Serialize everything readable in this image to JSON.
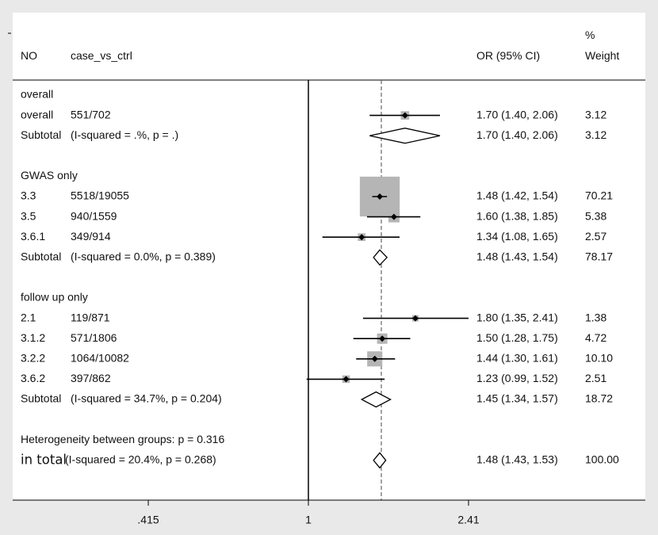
{
  "header": {
    "col_no": "NO",
    "col_label": "case_vs_ctrl",
    "col_or": "OR (95% CI)",
    "col_weight_line1": "%",
    "col_weight_line2": "Weight"
  },
  "chart_data": {
    "type": "forest",
    "x_scale": "log",
    "null_line": 1,
    "pooled_estimate": 1.48,
    "x_ticks": [
      {
        "value": 0.415,
        "label": ".415"
      },
      {
        "value": 1,
        "label": "1"
      },
      {
        "value": 2.41,
        "label": "2.41"
      }
    ],
    "rows": [
      {
        "kind": "group",
        "text": "overall"
      },
      {
        "kind": "study",
        "no": "overall",
        "label": "551/702",
        "or": 1.7,
        "lo": 1.4,
        "hi": 2.06,
        "ci_text": "1.70 (1.40, 2.06)",
        "weight": "3.12"
      },
      {
        "kind": "subtotal",
        "no": "Subtotal",
        "label": "(I-squared = .%, p = .)",
        "or": 1.7,
        "lo": 1.4,
        "hi": 2.06,
        "ci_text": "1.70 (1.40, 2.06)",
        "weight": "3.12"
      },
      {
        "kind": "blank"
      },
      {
        "kind": "group",
        "text": "GWAS only"
      },
      {
        "kind": "study",
        "no": "3.3",
        "label": "5518/19055",
        "or": 1.48,
        "lo": 1.42,
        "hi": 1.54,
        "ci_text": "1.48 (1.42, 1.54)",
        "weight": "70.21"
      },
      {
        "kind": "study",
        "no": "3.5",
        "label": "940/1559",
        "or": 1.6,
        "lo": 1.38,
        "hi": 1.85,
        "ci_text": "1.60 (1.38, 1.85)",
        "weight": "5.38"
      },
      {
        "kind": "study",
        "no": "3.6.1",
        "label": "349/914",
        "or": 1.34,
        "lo": 1.08,
        "hi": 1.65,
        "ci_text": "1.34 (1.08, 1.65)",
        "weight": "2.57"
      },
      {
        "kind": "subtotal",
        "no": "Subtotal",
        "label": "(I-squared = 0.0%, p = 0.389)",
        "or": 1.48,
        "lo": 1.43,
        "hi": 1.54,
        "ci_text": "1.48 (1.43, 1.54)",
        "weight": "78.17"
      },
      {
        "kind": "blank"
      },
      {
        "kind": "group",
        "text": "follow up only"
      },
      {
        "kind": "study",
        "no": "2.1",
        "label": "119/871",
        "or": 1.8,
        "lo": 1.35,
        "hi": 2.41,
        "ci_text": "1.80 (1.35, 2.41)",
        "weight": "1.38"
      },
      {
        "kind": "study",
        "no": "3.1.2",
        "label": "571/1806",
        "or": 1.5,
        "lo": 1.28,
        "hi": 1.75,
        "ci_text": "1.50 (1.28, 1.75)",
        "weight": "4.72"
      },
      {
        "kind": "study",
        "no": "3.2.2",
        "label": "1064/10082",
        "or": 1.44,
        "lo": 1.3,
        "hi": 1.61,
        "ci_text": "1.44 (1.30, 1.61)",
        "weight": "10.10"
      },
      {
        "kind": "study",
        "no": "3.6.2",
        "label": "397/862",
        "or": 1.23,
        "lo": 0.99,
        "hi": 1.52,
        "ci_text": "1.23 (0.99, 1.52)",
        "weight": "2.51"
      },
      {
        "kind": "subtotal",
        "no": "Subtotal",
        "label": "(I-squared = 34.7%, p = 0.204)",
        "or": 1.45,
        "lo": 1.34,
        "hi": 1.57,
        "ci_text": "1.45 (1.34, 1.57)",
        "weight": "18.72"
      },
      {
        "kind": "blank"
      },
      {
        "kind": "group",
        "text": "Heterogeneity between groups: p = 0.316"
      },
      {
        "kind": "overall",
        "no": "in total",
        "label": "(I-squared = 20.4%, p = 0.268)",
        "or": 1.48,
        "lo": 1.43,
        "hi": 1.53,
        "ci_text": "1.48 (1.43, 1.53)",
        "weight": "100.00"
      }
    ]
  },
  "colors": {
    "background": "#e9e9e9",
    "panel": "#ffffff",
    "box": "#b5b5b5",
    "line": "#000000",
    "dashed_line": "#666666"
  }
}
